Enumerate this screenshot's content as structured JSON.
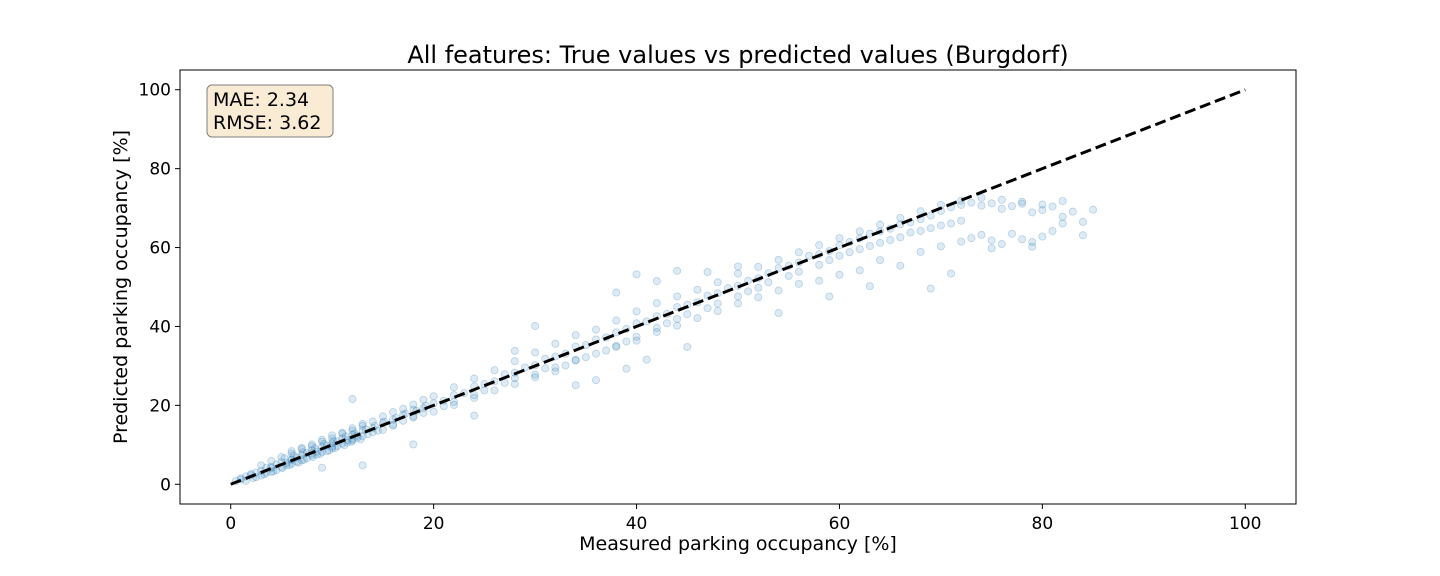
{
  "chart_data": {
    "type": "scatter",
    "title": "All features: True values vs predicted values (Burgdorf)",
    "xlabel": "Measured parking occupancy [%]",
    "ylabel": "Predicted parking occupancy [%]",
    "xlim": [
      -5,
      105
    ],
    "ylim": [
      -5,
      105
    ],
    "xticks": [
      "0",
      "20",
      "40",
      "60",
      "80",
      "100"
    ],
    "yticks": [
      "0",
      "20",
      "40",
      "60",
      "80",
      "100"
    ],
    "grid": false,
    "point_color": "#1f77b4",
    "reference_line": {
      "x": [
        0,
        100
      ],
      "y": [
        0,
        100
      ],
      "color": "#000000",
      "style": "dashed"
    },
    "stats": {
      "mae": "MAE: 2.34",
      "rmse": "RMSE: 3.62"
    },
    "points": [
      [
        0.5,
        0.8
      ],
      [
        1,
        1.5
      ],
      [
        1.5,
        2
      ],
      [
        2,
        2.3
      ],
      [
        2.5,
        3
      ],
      [
        3,
        3.4
      ],
      [
        3.5,
        4.2
      ],
      [
        4,
        4.1
      ],
      [
        4.5,
        5
      ],
      [
        5,
        5.6
      ],
      [
        5.5,
        5.4
      ],
      [
        6,
        6.3
      ],
      [
        6.5,
        6.8
      ],
      [
        7,
        7.4
      ],
      [
        7.5,
        7.9
      ],
      [
        8,
        8.6
      ],
      [
        8.5,
        8.3
      ],
      [
        9,
        9.5
      ],
      [
        9.5,
        9.8
      ],
      [
        10,
        10.4
      ],
      [
        10.5,
        10.9
      ],
      [
        11,
        11.6
      ],
      [
        11.5,
        11.2
      ],
      [
        12,
        12.5
      ],
      [
        12.5,
        12.3
      ],
      [
        13,
        13.7
      ],
      [
        14,
        14.2
      ],
      [
        15,
        15.5
      ],
      [
        16,
        16.4
      ],
      [
        17,
        17.6
      ],
      [
        18,
        18.9
      ],
      [
        19,
        19.3
      ],
      [
        20,
        20.5
      ],
      [
        21,
        21.2
      ],
      [
        22,
        22.6
      ],
      [
        23,
        23.1
      ],
      [
        24,
        24.8
      ],
      [
        25,
        25.4
      ],
      [
        26,
        26.1
      ],
      [
        27,
        27.9
      ],
      [
        28,
        28.3
      ],
      [
        29,
        29.6
      ],
      [
        30,
        30.2
      ],
      [
        31,
        31.8
      ],
      [
        32,
        32.4
      ],
      [
        33,
        33.1
      ],
      [
        34,
        34.9
      ],
      [
        35,
        35.3
      ],
      [
        36,
        36.7
      ],
      [
        37,
        37.2
      ],
      [
        38,
        38.5
      ],
      [
        39,
        39.4
      ],
      [
        40,
        40.8
      ],
      [
        41,
        41.3
      ],
      [
        42,
        42.6
      ],
      [
        43,
        43.2
      ],
      [
        44,
        44.9
      ],
      [
        45,
        45.5
      ],
      [
        46,
        46.1
      ],
      [
        47,
        47.8
      ],
      [
        48,
        48.4
      ],
      [
        49,
        49.7
      ],
      [
        50,
        50.3
      ],
      [
        51,
        51.6
      ],
      [
        52,
        52.2
      ],
      [
        53,
        53.5
      ],
      [
        54,
        54.8
      ],
      [
        55,
        55.4
      ],
      [
        56,
        56.2
      ],
      [
        57,
        57.9
      ],
      [
        58,
        58.3
      ],
      [
        59,
        59.1
      ],
      [
        60,
        60.6
      ],
      [
        61,
        61.4
      ],
      [
        62,
        62.3
      ],
      [
        63,
        63.5
      ],
      [
        64,
        64.1
      ],
      [
        65,
        64.8
      ],
      [
        66,
        65.9
      ],
      [
        67,
        66.4
      ],
      [
        68,
        67.2
      ],
      [
        69,
        68.1
      ],
      [
        70,
        69.3
      ],
      [
        71,
        70.2
      ],
      [
        72,
        70.8
      ],
      [
        73,
        71.4
      ],
      [
        74,
        70.6
      ],
      [
        75,
        71.2
      ],
      [
        76,
        69.8
      ],
      [
        77,
        70.5
      ],
      [
        78,
        71.1
      ],
      [
        79,
        68.9
      ],
      [
        80,
        69.5
      ],
      [
        81,
        70.4
      ],
      [
        82,
        67.8
      ],
      [
        83,
        69.1
      ],
      [
        84,
        66.5
      ],
      [
        85,
        69.6
      ],
      [
        3,
        2.2
      ],
      [
        4,
        3.1
      ],
      [
        5,
        4.3
      ],
      [
        6,
        5.2
      ],
      [
        7,
        6.1
      ],
      [
        8,
        7.3
      ],
      [
        9,
        8.2
      ],
      [
        10,
        9.1
      ],
      [
        11,
        10.3
      ],
      [
        12,
        11.1
      ],
      [
        13,
        12.2
      ],
      [
        6,
        7.8
      ],
      [
        7,
        9.2
      ],
      [
        8,
        10.1
      ],
      [
        9,
        11.3
      ],
      [
        10,
        12.4
      ],
      [
        11,
        13.1
      ],
      [
        12,
        14.2
      ],
      [
        13,
        15.3
      ],
      [
        15,
        13.8
      ],
      [
        16,
        14.9
      ],
      [
        17,
        16.1
      ],
      [
        18,
        17.2
      ],
      [
        19,
        18.1
      ],
      [
        21,
        19.8
      ],
      [
        22,
        20.9
      ],
      [
        24,
        22.6
      ],
      [
        25,
        23.8
      ],
      [
        27,
        25.7
      ],
      [
        28,
        26.9
      ],
      [
        30,
        27.8
      ],
      [
        31,
        29.4
      ],
      [
        32,
        28.6
      ],
      [
        33,
        30.1
      ],
      [
        34,
        31.4
      ],
      [
        35,
        32.2
      ],
      [
        37,
        33.9
      ],
      [
        38,
        35.1
      ],
      [
        39,
        36.2
      ],
      [
        40,
        37.4
      ],
      [
        42,
        39.6
      ],
      [
        43,
        40.8
      ],
      [
        44,
        41.9
      ],
      [
        45,
        43.1
      ],
      [
        47,
        44.6
      ],
      [
        48,
        45.8
      ],
      [
        50,
        47.6
      ],
      [
        51,
        48.9
      ],
      [
        52,
        49.8
      ],
      [
        53,
        51.2
      ],
      [
        55,
        52.8
      ],
      [
        56,
        53.9
      ],
      [
        58,
        55.6
      ],
      [
        59,
        56.8
      ],
      [
        60,
        57.9
      ],
      [
        61,
        58.8
      ],
      [
        62,
        59.6
      ],
      [
        63,
        60.4
      ],
      [
        64,
        61.2
      ],
      [
        65,
        61.9
      ],
      [
        66,
        62.6
      ],
      [
        67,
        63.8
      ],
      [
        68,
        64.2
      ],
      [
        69,
        64.9
      ],
      [
        70,
        65.6
      ],
      [
        71,
        66.1
      ],
      [
        72,
        66.8
      ],
      [
        73,
        62.4
      ],
      [
        74,
        63.2
      ],
      [
        75,
        61.8
      ],
      [
        76,
        60.9
      ],
      [
        77,
        63.5
      ],
      [
        78,
        62.1
      ],
      [
        79,
        61.4
      ],
      [
        80,
        62.8
      ],
      [
        81,
        64.2
      ],
      [
        82,
        66.1
      ],
      [
        68,
        58.9
      ],
      [
        70,
        60.3
      ],
      [
        72,
        61.5
      ],
      [
        64,
        56.8
      ],
      [
        66,
        55.4
      ],
      [
        62,
        54.2
      ],
      [
        60,
        53.1
      ],
      [
        58,
        51.6
      ],
      [
        56,
        50.8
      ],
      [
        54,
        49.1
      ],
      [
        52,
        47.4
      ],
      [
        50,
        45.8
      ],
      [
        48,
        43.9
      ],
      [
        46,
        42.1
      ],
      [
        44,
        40.2
      ],
      [
        42,
        38.6
      ],
      [
        40,
        36.4
      ],
      [
        38,
        34.8
      ],
      [
        36,
        33.1
      ],
      [
        34,
        31.5
      ],
      [
        32,
        29.6
      ],
      [
        30,
        27.1
      ],
      [
        28,
        25.4
      ],
      [
        26,
        23.8
      ],
      [
        24,
        21.9
      ],
      [
        22,
        20.1
      ],
      [
        20,
        18.4
      ],
      [
        18,
        16.9
      ],
      [
        16,
        15.1
      ],
      [
        14,
        13.2
      ],
      [
        12,
        11.5
      ],
      [
        10,
        9.6
      ],
      [
        8,
        7.8
      ],
      [
        6,
        6.2
      ],
      [
        4,
        4.4
      ],
      [
        2,
        2.6
      ],
      [
        1,
        1.2
      ],
      [
        2.5,
        1.8
      ],
      [
        3.5,
        2.9
      ],
      [
        4.5,
        3.6
      ],
      [
        5.5,
        4.8
      ],
      [
        6.5,
        5.7
      ],
      [
        7.5,
        6.6
      ],
      [
        8.5,
        7.5
      ],
      [
        9.5,
        8.4
      ],
      [
        10.5,
        9.7
      ],
      [
        11.5,
        10.6
      ],
      [
        12.5,
        11.8
      ],
      [
        13.5,
        12.7
      ],
      [
        14.5,
        13.6
      ],
      [
        3,
        4.8
      ],
      [
        4,
        5.9
      ],
      [
        5,
        6.9
      ],
      [
        6,
        8.4
      ],
      [
        7,
        8.9
      ],
      [
        8,
        9.6
      ],
      [
        9,
        10.8
      ],
      [
        10,
        11.6
      ],
      [
        11,
        12.8
      ],
      [
        12,
        13.6
      ],
      [
        13,
        14.8
      ],
      [
        14,
        15.9
      ],
      [
        15,
        17.2
      ],
      [
        16,
        18.3
      ],
      [
        17,
        19.1
      ],
      [
        18,
        20.2
      ],
      [
        19,
        21.4
      ],
      [
        20,
        22.3
      ],
      [
        22,
        24.6
      ],
      [
        24,
        26.8
      ],
      [
        26,
        28.9
      ],
      [
        28,
        31.2
      ],
      [
        30,
        33.4
      ],
      [
        32,
        35.6
      ],
      [
        34,
        37.8
      ],
      [
        36,
        39.2
      ],
      [
        38,
        41.5
      ],
      [
        40,
        43.8
      ],
      [
        42,
        45.9
      ],
      [
        44,
        47.6
      ],
      [
        46,
        49.3
      ],
      [
        48,
        51.2
      ],
      [
        50,
        53.4
      ],
      [
        52,
        55.1
      ],
      [
        54,
        56.9
      ],
      [
        56,
        58.8
      ],
      [
        58,
        60.6
      ],
      [
        60,
        62.4
      ],
      [
        62,
        64.1
      ],
      [
        64,
        65.8
      ],
      [
        66,
        67.5
      ],
      [
        68,
        69.2
      ],
      [
        70,
        70.8
      ],
      [
        72,
        71.9
      ],
      [
        74,
        72.6
      ],
      [
        76,
        72.1
      ],
      [
        78,
        71.6
      ],
      [
        80,
        70.9
      ],
      [
        82,
        71.8
      ],
      [
        28,
        33.8
      ],
      [
        30,
        40.1
      ],
      [
        38,
        48.6
      ],
      [
        40,
        53.2
      ],
      [
        42,
        51.5
      ],
      [
        44,
        54.1
      ],
      [
        47,
        53.8
      ],
      [
        50,
        55.2
      ],
      [
        12,
        21.6
      ],
      [
        9,
        4.2
      ],
      [
        13,
        4.8
      ],
      [
        18,
        10.1
      ],
      [
        24,
        17.4
      ],
      [
        34,
        25.1
      ],
      [
        36,
        26.4
      ],
      [
        39,
        29.3
      ],
      [
        41,
        31.6
      ],
      [
        45,
        34.8
      ],
      [
        54,
        43.4
      ],
      [
        59,
        47.6
      ],
      [
        63,
        50.2
      ],
      [
        69,
        49.6
      ],
      [
        71,
        53.4
      ],
      [
        75,
        59.8
      ],
      [
        79,
        60.2
      ],
      [
        84,
        63.1
      ],
      [
        1.5,
        0.9
      ],
      [
        2.2,
        1.6
      ],
      [
        3.3,
        2.5
      ],
      [
        4.2,
        3.3
      ],
      [
        5.1,
        4.1
      ],
      [
        5.8,
        4.9
      ],
      [
        6.7,
        5.5
      ],
      [
        7.2,
        6.2
      ],
      [
        8.1,
        6.9
      ],
      [
        8.8,
        7.7
      ],
      [
        9.7,
        8.6
      ],
      [
        10.3,
        9.2
      ],
      [
        11.2,
        9.9
      ],
      [
        11.9,
        10.8
      ],
      [
        12.8,
        11.4
      ],
      [
        5.3,
        6.6
      ],
      [
        6.2,
        7.3
      ],
      [
        7.1,
        8.1
      ],
      [
        8.3,
        9.1
      ],
      [
        9.2,
        10.2
      ],
      [
        10.1,
        10.9
      ],
      [
        11.3,
        12.1
      ],
      [
        12.2,
        12.9
      ],
      [
        13.3,
        13.9
      ],
      [
        14.2,
        14.8
      ],
      [
        15.1,
        15.9
      ],
      [
        16.3,
        16.8
      ],
      [
        17.2,
        17.9
      ],
      [
        18.3,
        18.6
      ],
      [
        19.2,
        19.9
      ]
    ]
  }
}
